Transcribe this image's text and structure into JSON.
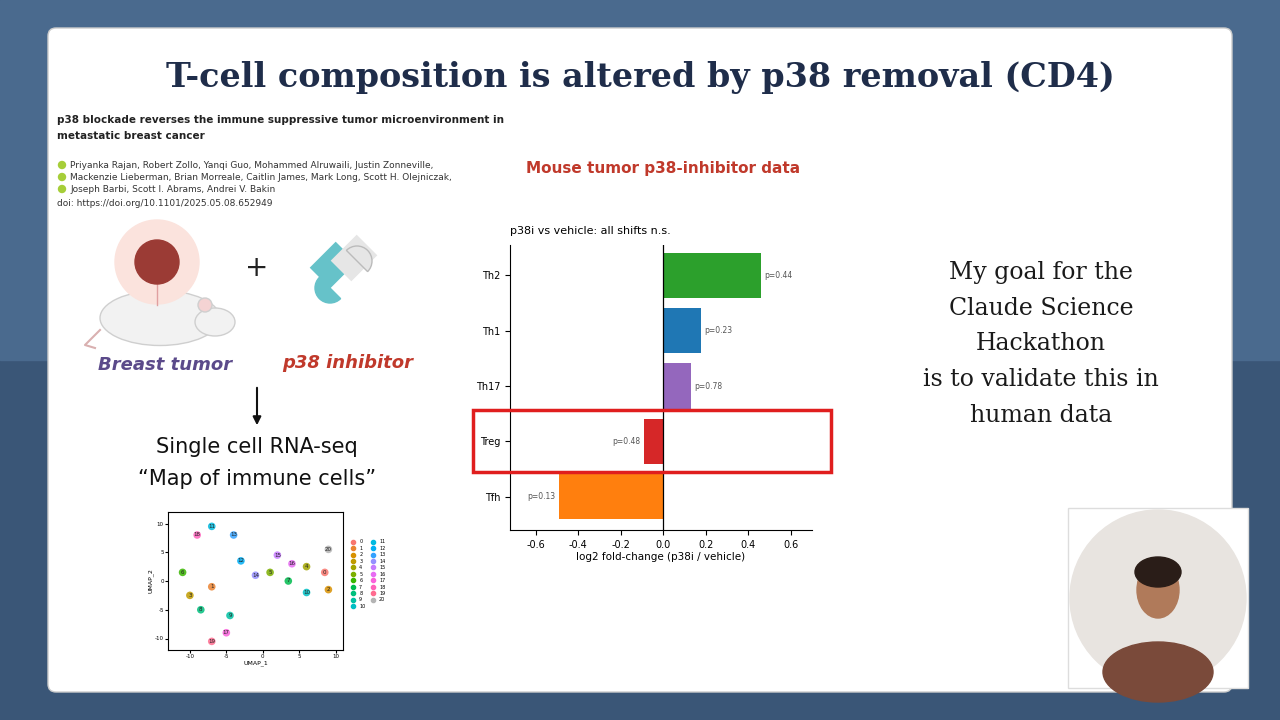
{
  "slide": {
    "title": "T-cell composition is altered by p38 removal (CD4)",
    "paper_title_lines": [
      "p38 blockade reverses the immune suppressive tumor microenvironment in",
      "metastatic breast cancer"
    ],
    "author_lines": [
      "Priyanka Rajan, Robert Zollo, Yanqi Guo, Mohammed Alruwaili, Justin Zonneville,",
      "Mackenzie Lieberman, Brian Morreale, Caitlin James, Mark Long, Scott H. Olejniczak,",
      "Joseph Barbi, Scott I. Abrams, Andrei V. Bakin"
    ],
    "doi": "doi: https://doi.org/10.1101/2025.05.08.652949",
    "tumor_label": "Breast tumor",
    "plus": "+",
    "drug_label": "p38 inhibitor",
    "method_lines": [
      "Single cell RNA-seq",
      "“Map of immune cells”"
    ],
    "chart_header": "Mouse tumor p38-inhibitor data",
    "goal_lines": [
      "My goal for the",
      "Claude Science",
      "Hackathon",
      "is to validate this in",
      "human data"
    ]
  },
  "chart_data": [
    {
      "type": "bar",
      "orientation": "horizontal",
      "title": "p38i vs vehicle: all shifts n.s.",
      "x_label": "log2 fold-change (p38i / vehicle)",
      "categories": [
        "Th2",
        "Th1",
        "Th17",
        "Treg",
        "Tfh"
      ],
      "values": [
        0.46,
        0.18,
        0.13,
        -0.09,
        -0.49
      ],
      "p_labels": [
        "p=0.44",
        "p=0.23",
        "p=0.78",
        "p=0.48",
        "p=0.13"
      ],
      "colors": [
        "#2ca02c",
        "#1f77b4",
        "#9467bd",
        "#d62728",
        "#ff7f0e"
      ],
      "xlim": [
        -0.72,
        0.7
      ],
      "xticks": [
        -0.6,
        -0.4,
        -0.2,
        0.0,
        0.2,
        0.4,
        0.6
      ],
      "grid": false
    },
    {
      "type": "scatter",
      "x_label": "UMAP_1",
      "y_label": "UMAP_2",
      "xlim": [
        -13,
        11
      ],
      "ylim": [
        -12,
        12
      ],
      "xticks": [
        -10,
        -5,
        0,
        5,
        10
      ],
      "yticks": [
        -10,
        -5,
        0,
        5,
        10
      ],
      "legend": "center left",
      "grid": false,
      "series": [
        {
          "name": "0",
          "color": "#F8766D",
          "x": [
            8.5
          ],
          "y": [
            1.5
          ]
        },
        {
          "name": "1",
          "color": "#EA8331",
          "x": [
            -7
          ],
          "y": [
            -1
          ]
        },
        {
          "name": "2",
          "color": "#D89000",
          "x": [
            9
          ],
          "y": [
            -1.5
          ]
        },
        {
          "name": "3",
          "color": "#C09B00",
          "x": [
            -10
          ],
          "y": [
            -2.5
          ]
        },
        {
          "name": "4",
          "color": "#A3A500",
          "x": [
            6
          ],
          "y": [
            2.5
          ]
        },
        {
          "name": "5",
          "color": "#7CAE00",
          "x": [
            1
          ],
          "y": [
            1.5
          ]
        },
        {
          "name": "6",
          "color": "#39B600",
          "x": [
            -11
          ],
          "y": [
            1.5
          ]
        },
        {
          "name": "7",
          "color": "#00BB4E",
          "x": [
            3.5
          ],
          "y": [
            0
          ]
        },
        {
          "name": "8",
          "color": "#00BF7D",
          "x": [
            -8.5
          ],
          "y": [
            -5
          ]
        },
        {
          "name": "9",
          "color": "#00C1A3",
          "x": [
            -4.5
          ],
          "y": [
            -6
          ]
        },
        {
          "name": "10",
          "color": "#00BFC4",
          "x": [
            6
          ],
          "y": [
            -2
          ]
        },
        {
          "name": "11",
          "color": "#00BAE0",
          "x": [
            -7
          ],
          "y": [
            9.5
          ]
        },
        {
          "name": "12",
          "color": "#00B0F6",
          "x": [
            -3
          ],
          "y": [
            3.5
          ]
        },
        {
          "name": "13",
          "color": "#35A2FF",
          "x": [
            -4
          ],
          "y": [
            8
          ]
        },
        {
          "name": "14",
          "color": "#9590FF",
          "x": [
            -1
          ],
          "y": [
            1
          ]
        },
        {
          "name": "15",
          "color": "#C77CFF",
          "x": [
            2
          ],
          "y": [
            4.5
          ]
        },
        {
          "name": "16",
          "color": "#E76BF3",
          "x": [
            4
          ],
          "y": [
            3
          ]
        },
        {
          "name": "17",
          "color": "#FA62DB",
          "x": [
            -5
          ],
          "y": [
            -9
          ]
        },
        {
          "name": "18",
          "color": "#FF62BC",
          "x": [
            -9
          ],
          "y": [
            8
          ]
        },
        {
          "name": "19",
          "color": "#FF6C90",
          "x": [
            -7
          ],
          "y": [
            -10.5
          ]
        },
        {
          "name": "20",
          "color": "#B4B4B4",
          "x": [
            9
          ],
          "y": [
            5.5
          ]
        }
      ]
    }
  ]
}
